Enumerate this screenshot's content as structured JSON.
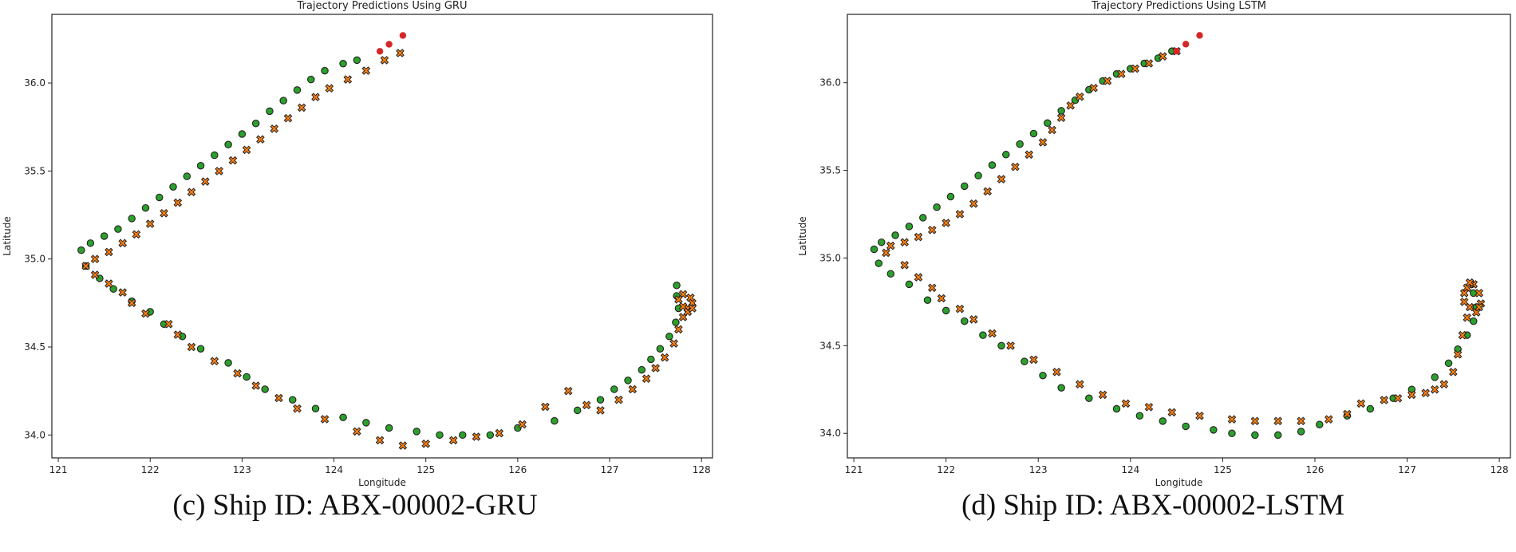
{
  "chart_data": [
    {
      "type": "scatter",
      "title": "Trajectory Predictions Using GRU",
      "xlabel": "Longitude",
      "ylabel": "Latitude",
      "xlim": [
        120.93,
        128.12
      ],
      "ylim": [
        33.87,
        36.39
      ],
      "xticks": [
        121,
        122,
        123,
        124,
        125,
        126,
        127,
        128
      ],
      "yticks": [
        34.0,
        34.5,
        35.0,
        35.5,
        36.0
      ],
      "ytick_labels": [
        "34.0",
        "34.5",
        "35.0",
        "35.5",
        "36.0"
      ],
      "grid": false,
      "caption": "(c) Ship ID: ABX-00002-GRU",
      "colors": {
        "actual": "#d62728",
        "observed": "#2ca02c",
        "predicted": "#ff7f0e",
        "edge": "#222222"
      },
      "future_points": [
        [
          124.5,
          36.18
        ],
        [
          124.6,
          36.22
        ],
        [
          124.75,
          36.27
        ]
      ],
      "observed_points": [
        [
          124.25,
          36.13
        ],
        [
          124.1,
          36.11
        ],
        [
          123.9,
          36.07
        ],
        [
          123.75,
          36.02
        ],
        [
          123.6,
          35.96
        ],
        [
          123.45,
          35.9
        ],
        [
          123.3,
          35.84
        ],
        [
          123.15,
          35.77
        ],
        [
          123.0,
          35.71
        ],
        [
          122.85,
          35.65
        ],
        [
          122.7,
          35.59
        ],
        [
          122.55,
          35.53
        ],
        [
          122.4,
          35.47
        ],
        [
          122.25,
          35.41
        ],
        [
          122.1,
          35.35
        ],
        [
          121.95,
          35.29
        ],
        [
          121.8,
          35.23
        ],
        [
          121.65,
          35.17
        ],
        [
          121.5,
          35.13
        ],
        [
          121.35,
          35.09
        ],
        [
          121.25,
          35.05
        ],
        [
          121.3,
          34.96
        ],
        [
          121.45,
          34.89
        ],
        [
          121.6,
          34.83
        ],
        [
          121.8,
          34.76
        ],
        [
          122.0,
          34.7
        ],
        [
          122.15,
          34.63
        ],
        [
          122.35,
          34.56
        ],
        [
          122.55,
          34.49
        ],
        [
          122.85,
          34.41
        ],
        [
          123.05,
          34.33
        ],
        [
          123.25,
          34.26
        ],
        [
          123.55,
          34.2
        ],
        [
          123.8,
          34.15
        ],
        [
          124.1,
          34.1
        ],
        [
          124.35,
          34.07
        ],
        [
          124.6,
          34.04
        ],
        [
          124.9,
          34.02
        ],
        [
          125.15,
          34.0
        ],
        [
          125.4,
          34.0
        ],
        [
          125.7,
          34.0
        ],
        [
          126.0,
          34.04
        ],
        [
          126.4,
          34.08
        ],
        [
          126.65,
          34.14
        ],
        [
          126.9,
          34.2
        ],
        [
          127.05,
          34.26
        ],
        [
          127.2,
          34.31
        ],
        [
          127.35,
          34.37
        ],
        [
          127.45,
          34.43
        ],
        [
          127.55,
          34.49
        ],
        [
          127.65,
          34.56
        ],
        [
          127.72,
          34.64
        ],
        [
          127.75,
          34.72
        ],
        [
          127.73,
          34.79
        ],
        [
          127.73,
          34.85
        ]
      ],
      "predicted_points": [
        [
          124.72,
          36.17
        ],
        [
          124.55,
          36.13
        ],
        [
          124.35,
          36.07
        ],
        [
          124.15,
          36.02
        ],
        [
          123.95,
          35.97
        ],
        [
          123.8,
          35.92
        ],
        [
          123.65,
          35.86
        ],
        [
          123.5,
          35.8
        ],
        [
          123.35,
          35.74
        ],
        [
          123.2,
          35.68
        ],
        [
          123.05,
          35.62
        ],
        [
          122.9,
          35.56
        ],
        [
          122.75,
          35.5
        ],
        [
          122.6,
          35.44
        ],
        [
          122.45,
          35.38
        ],
        [
          122.3,
          35.32
        ],
        [
          122.15,
          35.26
        ],
        [
          122.0,
          35.2
        ],
        [
          121.85,
          35.14
        ],
        [
          121.7,
          35.09
        ],
        [
          121.55,
          35.04
        ],
        [
          121.4,
          35.0
        ],
        [
          121.3,
          34.96
        ],
        [
          121.4,
          34.91
        ],
        [
          121.55,
          34.86
        ],
        [
          121.7,
          34.81
        ],
        [
          121.8,
          34.75
        ],
        [
          121.95,
          34.69
        ],
        [
          122.2,
          34.63
        ],
        [
          122.3,
          34.57
        ],
        [
          122.45,
          34.5
        ],
        [
          122.7,
          34.42
        ],
        [
          122.95,
          34.35
        ],
        [
          123.15,
          34.28
        ],
        [
          123.4,
          34.21
        ],
        [
          123.6,
          34.15
        ],
        [
          123.9,
          34.09
        ],
        [
          124.25,
          34.02
        ],
        [
          124.5,
          33.97
        ],
        [
          124.75,
          33.94
        ],
        [
          125.0,
          33.95
        ],
        [
          125.3,
          33.97
        ],
        [
          125.55,
          33.99
        ],
        [
          125.8,
          34.01
        ],
        [
          126.05,
          34.06
        ],
        [
          126.3,
          34.16
        ],
        [
          126.55,
          34.25
        ],
        [
          126.75,
          34.17
        ],
        [
          126.9,
          34.14
        ],
        [
          127.1,
          34.2
        ],
        [
          127.25,
          34.26
        ],
        [
          127.4,
          34.32
        ],
        [
          127.5,
          34.38
        ],
        [
          127.6,
          34.44
        ],
        [
          127.7,
          34.52
        ],
        [
          127.75,
          34.6
        ],
        [
          127.8,
          34.67
        ],
        [
          127.85,
          34.72
        ],
        [
          127.9,
          34.75
        ],
        [
          127.88,
          34.78
        ],
        [
          127.8,
          34.8
        ],
        [
          127.75,
          34.77
        ],
        [
          127.8,
          34.73
        ],
        [
          127.85,
          34.7
        ],
        [
          127.9,
          34.72
        ]
      ]
    },
    {
      "type": "scatter",
      "title": "Trajectory Predictions Using LSTM",
      "xlabel": "Longitude",
      "ylabel": "Latitude",
      "xlim": [
        120.93,
        128.12
      ],
      "ylim": [
        33.86,
        36.39
      ],
      "xticks": [
        121,
        122,
        123,
        124,
        125,
        126,
        127,
        128
      ],
      "yticks": [
        34.0,
        34.5,
        35.0,
        35.5,
        36.0
      ],
      "ytick_labels": [
        "34.0",
        "34.5",
        "35.0",
        "35.5",
        "36.0"
      ],
      "grid": false,
      "caption": "(d) Ship ID: ABX-00002-LSTM",
      "colors": {
        "actual": "#d62728",
        "observed": "#2ca02c",
        "predicted": "#ff7f0e",
        "edge": "#222222"
      },
      "future_points": [
        [
          124.5,
          36.18
        ],
        [
          124.6,
          36.22
        ],
        [
          124.75,
          36.27
        ]
      ],
      "observed_points": [
        [
          124.45,
          36.18
        ],
        [
          124.3,
          36.14
        ],
        [
          124.15,
          36.11
        ],
        [
          124.0,
          36.08
        ],
        [
          123.85,
          36.05
        ],
        [
          123.7,
          36.01
        ],
        [
          123.55,
          35.96
        ],
        [
          123.4,
          35.9
        ],
        [
          123.25,
          35.84
        ],
        [
          123.1,
          35.77
        ],
        [
          122.95,
          35.71
        ],
        [
          122.8,
          35.65
        ],
        [
          122.65,
          35.59
        ],
        [
          122.5,
          35.53
        ],
        [
          122.35,
          35.47
        ],
        [
          122.2,
          35.41
        ],
        [
          122.05,
          35.35
        ],
        [
          121.9,
          35.29
        ],
        [
          121.75,
          35.23
        ],
        [
          121.6,
          35.18
        ],
        [
          121.45,
          35.13
        ],
        [
          121.3,
          35.09
        ],
        [
          121.22,
          35.05
        ],
        [
          121.27,
          34.97
        ],
        [
          121.4,
          34.91
        ],
        [
          121.6,
          34.85
        ],
        [
          121.8,
          34.76
        ],
        [
          122.0,
          34.7
        ],
        [
          122.2,
          34.64
        ],
        [
          122.4,
          34.56
        ],
        [
          122.6,
          34.5
        ],
        [
          122.85,
          34.41
        ],
        [
          123.05,
          34.33
        ],
        [
          123.25,
          34.26
        ],
        [
          123.55,
          34.2
        ],
        [
          123.85,
          34.14
        ],
        [
          124.1,
          34.1
        ],
        [
          124.35,
          34.07
        ],
        [
          124.6,
          34.04
        ],
        [
          124.9,
          34.02
        ],
        [
          125.1,
          34.0
        ],
        [
          125.35,
          33.99
        ],
        [
          125.6,
          33.99
        ],
        [
          125.85,
          34.01
        ],
        [
          126.05,
          34.05
        ],
        [
          126.35,
          34.1
        ],
        [
          126.6,
          34.14
        ],
        [
          126.85,
          34.2
        ],
        [
          127.05,
          34.25
        ],
        [
          127.3,
          34.32
        ],
        [
          127.45,
          34.4
        ],
        [
          127.55,
          34.48
        ],
        [
          127.65,
          34.56
        ],
        [
          127.72,
          34.64
        ],
        [
          127.75,
          34.72
        ],
        [
          127.72,
          34.8
        ],
        [
          127.7,
          34.85
        ]
      ],
      "predicted_points": [
        [
          124.5,
          36.18
        ],
        [
          124.35,
          36.15
        ],
        [
          124.2,
          36.11
        ],
        [
          124.05,
          36.08
        ],
        [
          123.9,
          36.05
        ],
        [
          123.75,
          36.01
        ],
        [
          123.6,
          35.97
        ],
        [
          123.45,
          35.92
        ],
        [
          123.35,
          35.87
        ],
        [
          123.25,
          35.8
        ],
        [
          123.15,
          35.73
        ],
        [
          123.05,
          35.66
        ],
        [
          122.9,
          35.59
        ],
        [
          122.75,
          35.52
        ],
        [
          122.6,
          35.45
        ],
        [
          122.45,
          35.38
        ],
        [
          122.3,
          35.31
        ],
        [
          122.15,
          35.25
        ],
        [
          122.0,
          35.2
        ],
        [
          121.85,
          35.16
        ],
        [
          121.7,
          35.12
        ],
        [
          121.55,
          35.09
        ],
        [
          121.4,
          35.07
        ],
        [
          121.35,
          35.03
        ],
        [
          121.55,
          34.96
        ],
        [
          121.7,
          34.89
        ],
        [
          121.85,
          34.83
        ],
        [
          121.95,
          34.77
        ],
        [
          122.15,
          34.71
        ],
        [
          122.3,
          34.65
        ],
        [
          122.5,
          34.57
        ],
        [
          122.7,
          34.5
        ],
        [
          122.95,
          34.42
        ],
        [
          123.2,
          34.35
        ],
        [
          123.45,
          34.28
        ],
        [
          123.7,
          34.22
        ],
        [
          123.95,
          34.17
        ],
        [
          124.2,
          34.15
        ],
        [
          124.45,
          34.12
        ],
        [
          124.75,
          34.1
        ],
        [
          125.1,
          34.08
        ],
        [
          125.35,
          34.07
        ],
        [
          125.6,
          34.07
        ],
        [
          125.85,
          34.07
        ],
        [
          126.15,
          34.08
        ],
        [
          126.35,
          34.11
        ],
        [
          126.5,
          34.17
        ],
        [
          126.75,
          34.19
        ],
        [
          126.9,
          34.2
        ],
        [
          127.05,
          34.22
        ],
        [
          127.2,
          34.23
        ],
        [
          127.3,
          34.25
        ],
        [
          127.4,
          34.28
        ],
        [
          127.5,
          34.35
        ],
        [
          127.55,
          34.45
        ],
        [
          127.6,
          34.56
        ],
        [
          127.65,
          34.66
        ],
        [
          127.62,
          34.75
        ],
        [
          127.65,
          34.83
        ],
        [
          127.72,
          34.85
        ],
        [
          127.78,
          34.8
        ],
        [
          127.8,
          34.74
        ],
        [
          127.75,
          34.69
        ],
        [
          127.68,
          34.72
        ],
        [
          127.62,
          34.8
        ],
        [
          127.68,
          34.86
        ],
        [
          127.78,
          34.72
        ]
      ]
    }
  ],
  "captions": {
    "left": "(c) Ship ID: ABX-00002-GRU",
    "right": "(d) Ship ID: ABX-00002-LSTM"
  }
}
